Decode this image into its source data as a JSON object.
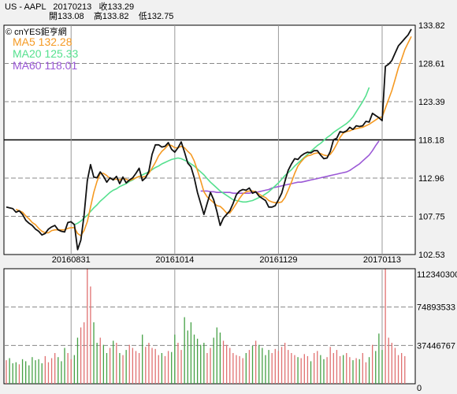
{
  "header": {
    "ticker": "US - AAPL",
    "date": "20170213",
    "close": "收133.29",
    "open": "開133.08",
    "high": "高133.82",
    "low": "低132.75"
  },
  "chart_data": [
    {
      "type": "line",
      "title": "",
      "source": "© cnYES鉅亨網",
      "ylim": [
        102.53,
        133.82
      ],
      "yticks": [
        "133.82",
        "128.61",
        "123.39",
        "118.18",
        "112.96",
        "107.75",
        "102.53"
      ],
      "xticks": [
        "20160831",
        "20161014",
        "20161129",
        "20170113"
      ],
      "reference_line": 118.18,
      "grid": true,
      "legend_position": "top-left",
      "legend": [
        "MA5 132.28",
        "MA20 125.33",
        "MA60 118.01"
      ],
      "colors": {
        "price": "#111111",
        "MA5": "#f59a23",
        "MA20": "#55e08e",
        "MA60": "#9b59d6"
      },
      "series": [
        {
          "name": "Close",
          "values": [
            109.0,
            108.9,
            108.8,
            108.3,
            108.5,
            108.0,
            107.2,
            106.8,
            106.5,
            106.0,
            105.7,
            105.2,
            105.4,
            106.0,
            106.3,
            106.5,
            105.9,
            105.7,
            105.6,
            106.9,
            107.0,
            106.6,
            103.2,
            104.5,
            107.9,
            112.6,
            114.8,
            113.1,
            113.0,
            113.8,
            113.2,
            112.4,
            113.0,
            112.7,
            113.2,
            112.2,
            113.1,
            112.3,
            112.7,
            113.0,
            113.6,
            114.3,
            112.6,
            113.0,
            113.9,
            116.2,
            117.5,
            117.5,
            117.2,
            117.3,
            117.8,
            116.9,
            116.5,
            117.1,
            117.9,
            116.5,
            115.0,
            114.5,
            113.0,
            111.0,
            109.5,
            108.0,
            109.5,
            111.0,
            110.0,
            108.4,
            106.5,
            107.5,
            108.0,
            108.5,
            109.5,
            110.7,
            111.2,
            111.4,
            111.3,
            111.6,
            110.9,
            111.1,
            110.5,
            110.2,
            109.9,
            109.0,
            109.0,
            109.2,
            110.0,
            110.9,
            112.5,
            114.0,
            114.9,
            115.6,
            115.5,
            116.0,
            116.3,
            116.5,
            116.4,
            116.7,
            116.7,
            116.1,
            115.6,
            115.7,
            116.6,
            118.2,
            118.4,
            119.3,
            119.2,
            119.4,
            119.9,
            119.6,
            120.1,
            120.0,
            120.1,
            120.7,
            120.6,
            121.8,
            121.5,
            121.2,
            120.8,
            128.2,
            128.5,
            129.0,
            130.0,
            131.0,
            131.5,
            132.0,
            132.5,
            133.29
          ]
        },
        {
          "name": "MA5",
          "values": [
            null,
            null,
            null,
            108.7,
            108.5,
            108.3,
            107.8,
            107.4,
            106.9,
            106.6,
            106.1,
            105.7,
            105.5,
            105.5,
            105.8,
            105.9,
            105.9,
            105.9,
            105.9,
            106.1,
            106.2,
            106.2,
            105.4,
            105.1,
            105.8,
            107.0,
            109.0,
            111.0,
            112.5,
            113.6,
            113.6,
            113.3,
            112.9,
            112.8,
            112.8,
            112.7,
            112.9,
            112.8,
            112.6,
            112.8,
            113.0,
            113.2,
            113.1,
            113.2,
            113.6,
            114.3,
            115.1,
            116.0,
            116.6,
            117.0,
            117.5,
            117.4,
            117.1,
            117.1,
            117.3,
            117.1,
            116.6,
            116.2,
            115.3,
            114.0,
            112.6,
            111.1,
            110.4,
            110.0,
            109.6,
            109.2,
            109.1,
            108.7,
            108.2,
            108.2,
            108.8,
            109.5,
            110.2,
            110.8,
            111.1,
            111.2,
            111.2,
            111.1,
            110.8,
            110.5,
            110.3,
            109.9,
            109.7,
            109.6,
            109.6,
            109.7,
            110.3,
            111.3,
            112.4,
            113.6,
            114.6,
            115.2,
            115.7,
            116.0,
            116.1,
            116.3,
            116.4,
            116.3,
            116.1,
            116.0,
            116.2,
            116.8,
            117.6,
            118.5,
            119.1,
            119.3,
            119.4,
            119.6,
            119.7,
            119.8,
            119.9,
            120.1,
            120.3,
            120.6,
            120.9,
            121.2,
            121.3,
            122.5,
            123.7,
            124.9,
            126.4,
            128.0,
            129.2,
            130.5,
            131.4,
            132.28
          ]
        },
        {
          "name": "MA20",
          "values": [
            null,
            null,
            null,
            null,
            null,
            null,
            null,
            null,
            null,
            null,
            null,
            null,
            null,
            null,
            null,
            null,
            null,
            null,
            null,
            null,
            null,
            106.6,
            106.8,
            107.1,
            107.5,
            107.9,
            108.4,
            108.9,
            109.3,
            109.8,
            110.2,
            110.6,
            111.0,
            111.3,
            111.5,
            111.8,
            112.0,
            112.2,
            112.5,
            112.7,
            113.0,
            113.2,
            113.4,
            113.6,
            113.8,
            114.1,
            114.4,
            114.6,
            114.9,
            115.1,
            115.3,
            115.5,
            115.6,
            115.7,
            115.6,
            115.4,
            115.2,
            114.9,
            114.6,
            114.2,
            113.8,
            113.4,
            112.9,
            112.4,
            112.0,
            111.6,
            111.2,
            110.9,
            110.6,
            110.3,
            110.0,
            109.9,
            109.8,
            109.7,
            109.7,
            109.8,
            109.9,
            110.1,
            110.3,
            110.5,
            110.8,
            111.1,
            111.5,
            111.9,
            112.3,
            112.8,
            113.3,
            113.7,
            114.1,
            114.6,
            115.0,
            115.4,
            115.8,
            116.2,
            116.6,
            117.0,
            117.4,
            117.7,
            118.1,
            118.5,
            118.8,
            119.2,
            119.5,
            119.8,
            120.1,
            120.4,
            120.8,
            121.3,
            122.0,
            122.7,
            123.4,
            124.2,
            125.33
          ]
        },
        {
          "name": "MA60",
          "values": [
            null,
            null,
            null,
            null,
            null,
            null,
            null,
            null,
            null,
            null,
            null,
            null,
            null,
            null,
            null,
            null,
            null,
            null,
            null,
            null,
            null,
            null,
            null,
            null,
            null,
            null,
            null,
            null,
            null,
            null,
            null,
            null,
            null,
            null,
            null,
            null,
            null,
            null,
            null,
            null,
            null,
            null,
            null,
            null,
            null,
            null,
            null,
            null,
            null,
            null,
            null,
            null,
            null,
            null,
            null,
            null,
            null,
            null,
            null,
            null,
            111.2,
            111.2,
            111.2,
            111.1,
            111.1,
            111.0,
            111.0,
            111.0,
            111.0,
            111.0,
            110.9,
            110.9,
            110.9,
            110.9,
            110.9,
            110.9,
            111.0,
            111.0,
            111.1,
            111.2,
            111.3,
            111.4,
            111.6,
            111.7,
            111.8,
            111.9,
            112.0,
            112.1,
            112.2,
            112.3,
            112.4,
            112.4,
            112.5,
            112.6,
            112.7,
            112.8,
            112.9,
            113.0,
            113.1,
            113.2,
            113.3,
            113.4,
            113.5,
            113.6,
            113.7,
            113.8,
            114.0,
            114.3,
            114.6,
            114.9,
            115.3,
            115.7,
            116.1,
            116.7,
            117.4,
            118.01
          ]
        }
      ]
    },
    {
      "type": "bar",
      "title": "",
      "ylim": [
        0,
        112340300
      ],
      "yticks": [
        "112340300",
        "74893533",
        "37446767",
        "0"
      ],
      "grid": true,
      "series": [
        {
          "name": "Volume",
          "values": [
            23,
            25,
            20,
            21,
            19,
            24,
            22,
            18,
            26,
            23,
            24,
            20,
            27,
            21,
            25,
            30,
            26,
            22,
            35,
            30,
            24,
            28,
            45,
            55,
            60,
            112,
            95,
            60,
            40,
            45,
            38,
            30,
            35,
            42,
            40,
            30,
            28,
            33,
            38,
            35,
            32,
            30,
            48,
            36,
            40,
            35,
            34,
            28,
            30,
            27,
            32,
            31,
            48,
            40,
            33,
            65,
            52,
            60,
            48,
            44,
            38,
            40,
            30,
            35,
            45,
            55,
            50,
            42,
            38,
            35,
            30,
            28,
            27,
            25,
            30,
            33,
            37,
            42,
            38,
            35,
            28,
            33,
            30,
            34,
            32,
            36,
            40,
            33,
            30,
            28,
            26,
            25,
            29,
            27,
            22,
            30,
            32,
            28,
            24,
            26,
            36,
            30,
            33,
            27,
            28,
            30,
            26,
            23,
            25,
            24,
            30,
            21,
            26,
            38,
            32,
            49,
            33,
            112,
            45,
            40,
            35,
            28,
            30,
            27
          ]
        }
      ]
    }
  ]
}
